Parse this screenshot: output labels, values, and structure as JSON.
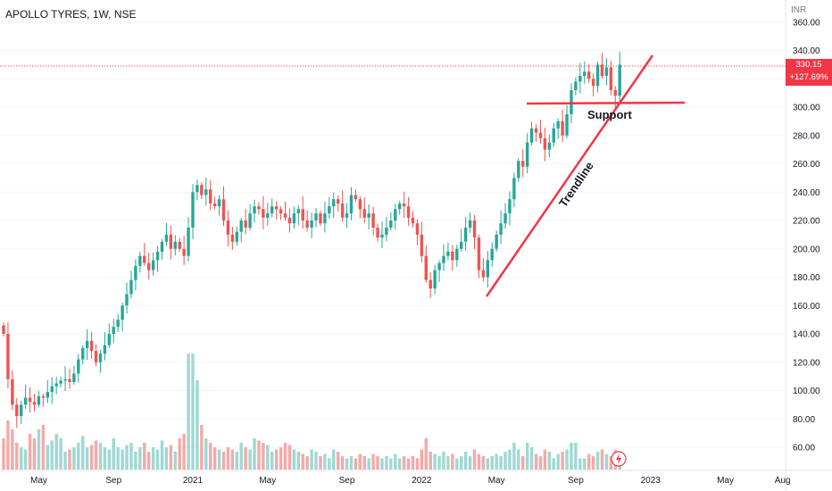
{
  "header": {
    "title": "APOLLO TYRES, 1W, NSE",
    "currency": "INR"
  },
  "last_price": {
    "value": "330.15",
    "change": "+127.69%"
  },
  "colors": {
    "up": "#26a69a",
    "down": "#ef5350",
    "vol_up": "#9fd8d2",
    "vol_down": "#f5a9a7",
    "line": "#f23645"
  },
  "annotations": {
    "support": "Support",
    "trendline": "Trendline"
  },
  "chart_data": {
    "type": "candlestick",
    "title": "APOLLO TYRES, 1W, NSE",
    "ylabel": "INR",
    "ylim": [
      50,
      370
    ],
    "yticks": [
      60,
      80,
      100,
      120,
      140,
      160,
      180,
      200,
      220,
      240,
      260,
      280,
      300,
      320,
      340,
      360
    ],
    "ytick_labels": [
      "60.00",
      "80.00",
      "100.00",
      "120.00",
      "140.00",
      "160.00",
      "180.00",
      "200.00",
      "220.00",
      "240.00",
      "260.00",
      "280.00",
      "300.00",
      "320.00",
      "340.00",
      "360.00"
    ],
    "xticks": [
      {
        "label": "May",
        "index": 8
      },
      {
        "label": "Sep",
        "index": 25
      },
      {
        "label": "2021",
        "index": 43
      },
      {
        "label": "May",
        "index": 60
      },
      {
        "label": "Sep",
        "index": 78
      },
      {
        "label": "2022",
        "index": 95
      },
      {
        "label": "May",
        "index": 112
      },
      {
        "label": "Sep",
        "index": 130
      },
      {
        "label": "2023",
        "index": 147
      },
      {
        "label": "May",
        "index": 164
      },
      {
        "label": "Aug",
        "index": 177
      }
    ],
    "closes": [
      140,
      108,
      90,
      82,
      90,
      95,
      92,
      90,
      96,
      95,
      99,
      103,
      105,
      107,
      108,
      106,
      112,
      122,
      130,
      135,
      128,
      120,
      126,
      132,
      140,
      145,
      150,
      160,
      168,
      178,
      188,
      195,
      190,
      185,
      192,
      198,
      205,
      210,
      200,
      205,
      200,
      195,
      215,
      240,
      245,
      238,
      242,
      232,
      230,
      235,
      220,
      210,
      205,
      212,
      220,
      215,
      225,
      230,
      228,
      222,
      225,
      230,
      228,
      225,
      222,
      218,
      225,
      228,
      220,
      215,
      220,
      225,
      218,
      225,
      230,
      235,
      232,
      222,
      225,
      238,
      235,
      228,
      222,
      225,
      215,
      208,
      210,
      215,
      220,
      228,
      232,
      230,
      222,
      218,
      210,
      195,
      178,
      172,
      185,
      190,
      195,
      198,
      192,
      200,
      205,
      215,
      220,
      208,
      185,
      180,
      192,
      200,
      210,
      218,
      225,
      235,
      250,
      262,
      258,
      275,
      285,
      282,
      278,
      270,
      275,
      285,
      290,
      280,
      295,
      312,
      318,
      322,
      325,
      320,
      315,
      330,
      322,
      328,
      312,
      308,
      330
    ],
    "volumes": [
      14,
      22,
      18,
      12,
      10,
      9,
      16,
      14,
      18,
      20,
      11,
      13,
      16,
      14,
      8,
      9,
      10,
      12,
      15,
      10,
      11,
      13,
      12,
      10,
      9,
      14,
      10,
      9,
      11,
      12,
      8,
      10,
      12,
      8,
      10,
      9,
      13,
      10,
      11,
      8,
      14,
      16,
      52,
      52,
      40,
      20,
      14,
      12,
      10,
      9,
      8,
      10,
      9,
      8,
      12,
      10,
      9,
      14,
      13,
      12,
      11,
      8,
      9,
      10,
      12,
      11,
      9,
      8,
      7,
      6,
      9,
      8,
      6,
      7,
      5,
      9,
      8,
      6,
      5,
      6,
      5,
      7,
      6,
      5,
      7,
      6,
      5,
      6,
      5,
      7,
      5,
      6,
      5,
      6,
      5,
      9,
      14,
      8,
      7,
      6,
      8,
      6,
      7,
      5,
      6,
      8,
      6,
      9,
      7,
      6,
      5,
      6,
      7,
      6,
      8,
      9,
      12,
      9,
      6,
      12,
      10,
      7,
      6,
      9,
      8,
      5,
      7,
      8,
      9,
      12,
      12,
      5,
      5,
      7,
      6,
      8,
      9,
      7,
      6,
      9,
      7
    ]
  }
}
